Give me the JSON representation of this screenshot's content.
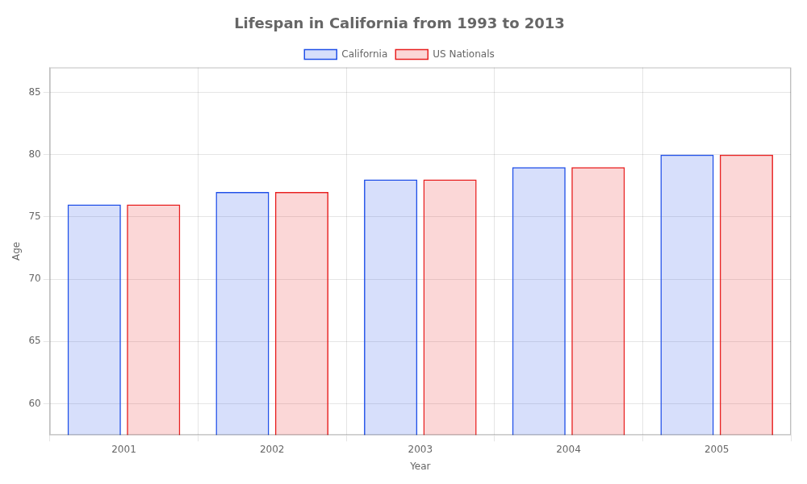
{
  "chart_data": {
    "type": "bar",
    "title": "Lifespan in California from 1993 to 2013",
    "xlabel": "Year",
    "ylabel": "Age",
    "categories": [
      "2001",
      "2002",
      "2003",
      "2004",
      "2005"
    ],
    "series": [
      {
        "name": "California",
        "color": "#1f4fe8",
        "values": [
          76,
          77,
          78,
          79,
          80
        ]
      },
      {
        "name": "US Nationals",
        "color": "#e81f1f",
        "values": [
          76,
          77,
          78,
          79,
          80
        ]
      }
    ],
    "ylim": [
      57.5,
      87
    ],
    "yticks": [
      60,
      65,
      70,
      75,
      80,
      85
    ],
    "grid": true,
    "legend": "top"
  }
}
